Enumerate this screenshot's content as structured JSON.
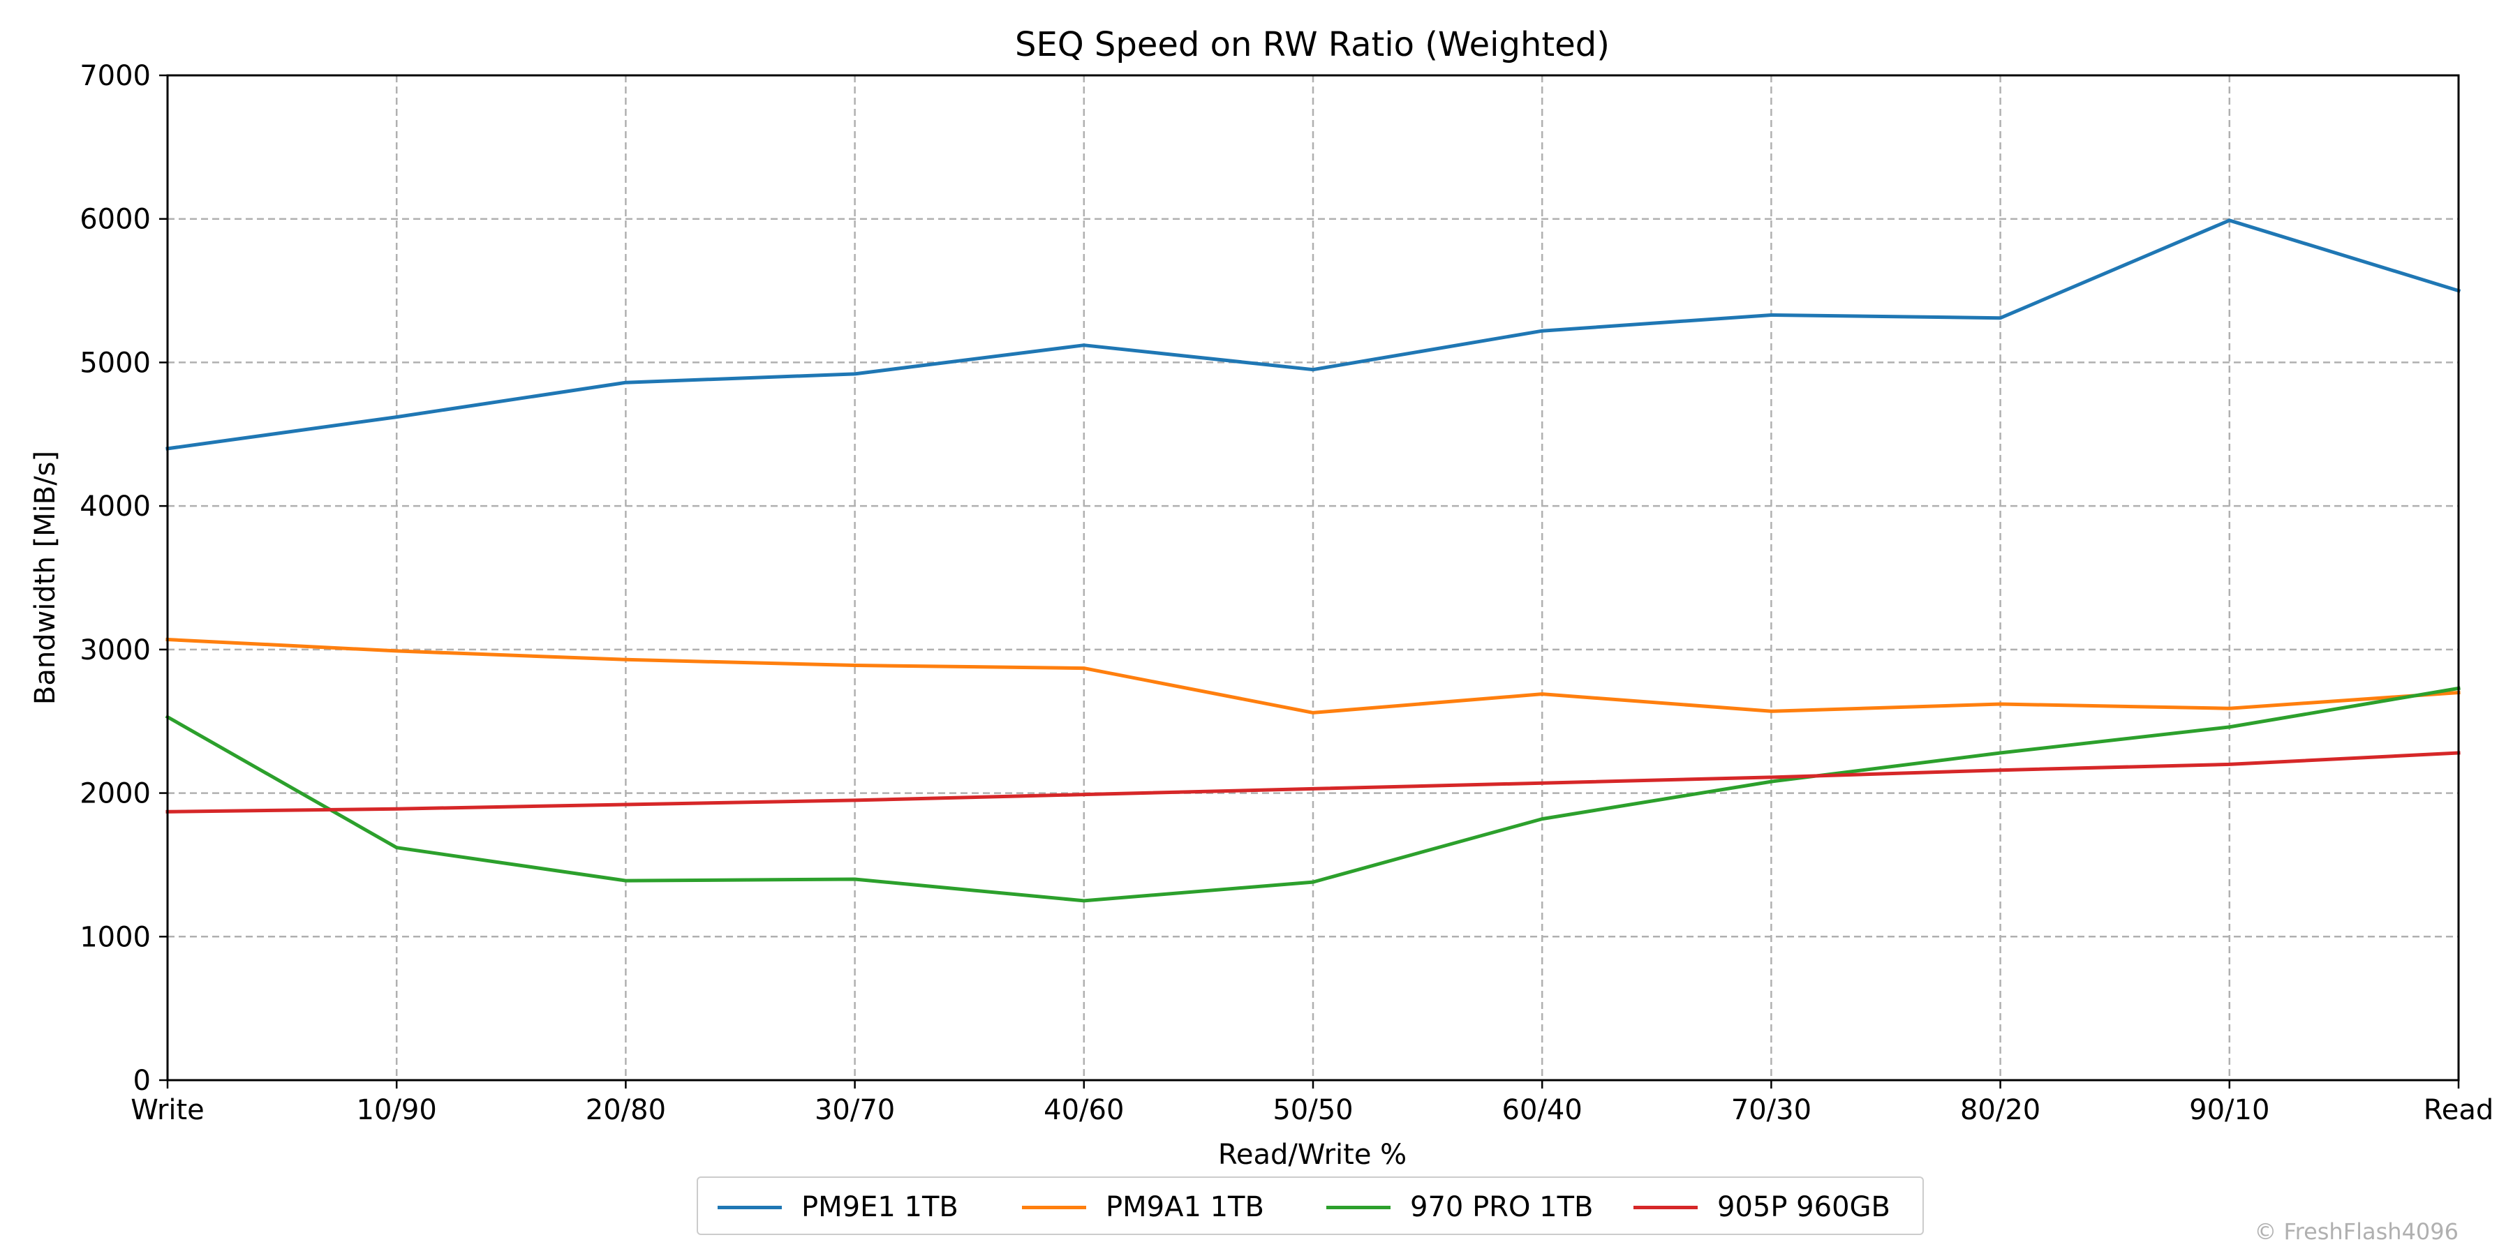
{
  "chart_data": {
    "type": "line",
    "title": "SEQ Speed on RW Ratio (Weighted)",
    "xlabel": "Read/Write %",
    "ylabel": "Bandwidth [MiB/s]",
    "categories": [
      "Write",
      "10/90",
      "20/80",
      "30/70",
      "40/60",
      "50/50",
      "60/40",
      "70/30",
      "80/20",
      "90/10",
      "Read"
    ],
    "ylim": [
      0,
      7000
    ],
    "yticks": [
      0,
      1000,
      2000,
      3000,
      4000,
      5000,
      6000,
      7000
    ],
    "grid": true,
    "legend_position": "bottom-center",
    "series": [
      {
        "name": "PM9E1 1TB",
        "color": "#1f77b4",
        "values": [
          4400,
          4620,
          4860,
          4920,
          5120,
          4950,
          5220,
          5330,
          5310,
          5990,
          5500
        ]
      },
      {
        "name": "PM9A1 1TB",
        "color": "#ff7f0e",
        "values": [
          3070,
          2990,
          2930,
          2890,
          2870,
          2560,
          2690,
          2570,
          2620,
          2590,
          2700
        ]
      },
      {
        "name": "970 PRO 1TB",
        "color": "#2ca02c",
        "values": [
          2530,
          1620,
          1390,
          1400,
          1250,
          1380,
          1820,
          2080,
          2280,
          2460,
          2730
        ]
      },
      {
        "name": "905P 960GB",
        "color": "#d62728",
        "values": [
          1870,
          1890,
          1920,
          1950,
          1990,
          2030,
          2070,
          2110,
          2160,
          2200,
          2280
        ]
      }
    ]
  },
  "watermark": "© FreshFlash4096"
}
